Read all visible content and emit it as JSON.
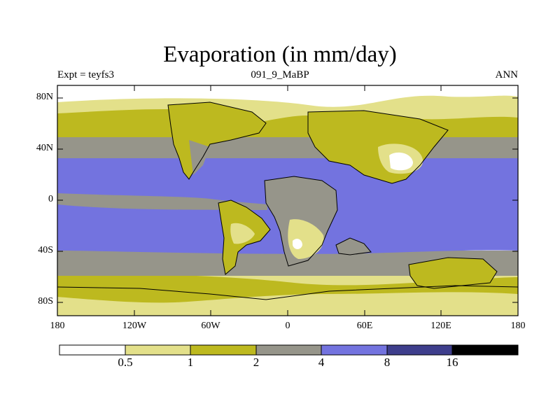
{
  "title": "Evaporation (in mm/day)",
  "subtitle_left": "Expt = teyfs3",
  "subtitle_center": "091_9_MaBP",
  "subtitle_right": "ANN",
  "map": {
    "lon_range": [
      -180,
      180
    ],
    "lat_range": [
      -90,
      90
    ],
    "lat_ticks": [
      "80N",
      "40N",
      "0",
      "40S",
      "80S"
    ],
    "lon_ticks": [
      "180",
      "120W",
      "60W",
      "0",
      "60E",
      "120E",
      "180"
    ]
  },
  "colorbar": {
    "colors": [
      "#ffffff",
      "#e3e08a",
      "#bdb91f",
      "#96958a",
      "#7373df",
      "#3e3e8c",
      "#000000"
    ],
    "labels": [
      "0.5",
      "1",
      "2",
      "4",
      "8",
      "16"
    ]
  }
}
